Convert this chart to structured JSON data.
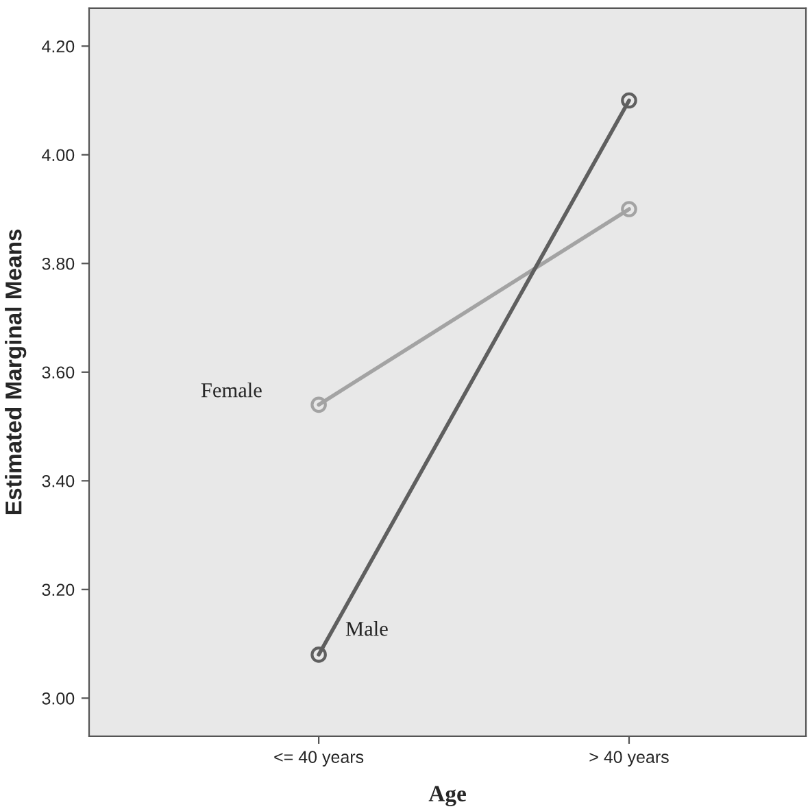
{
  "chart_data": {
    "type": "line",
    "xlabel": "Age",
    "ylabel": "Estimated Marginal Means",
    "categories": [
      "<= 40 years",
      "> 40 years"
    ],
    "series": [
      {
        "name": "Female",
        "color": "#a3a3a3",
        "values": [
          3.54,
          3.9
        ]
      },
      {
        "name": "Male",
        "color": "#5f5f5f",
        "values": [
          3.08,
          4.1
        ]
      }
    ],
    "ylim": [
      2.93,
      4.27
    ],
    "yticks": [
      {
        "value": 3.0,
        "label": "3.00"
      },
      {
        "value": 3.2,
        "label": "3.20"
      },
      {
        "value": 3.4,
        "label": "3.40"
      },
      {
        "value": 3.6,
        "label": "3.60"
      },
      {
        "value": 3.8,
        "label": "3.80"
      },
      {
        "value": 4.0,
        "label": "4.00"
      },
      {
        "value": 4.2,
        "label": "4.20"
      }
    ],
    "marker": "circle",
    "line_style": "solid",
    "grid": false,
    "legend": false
  }
}
